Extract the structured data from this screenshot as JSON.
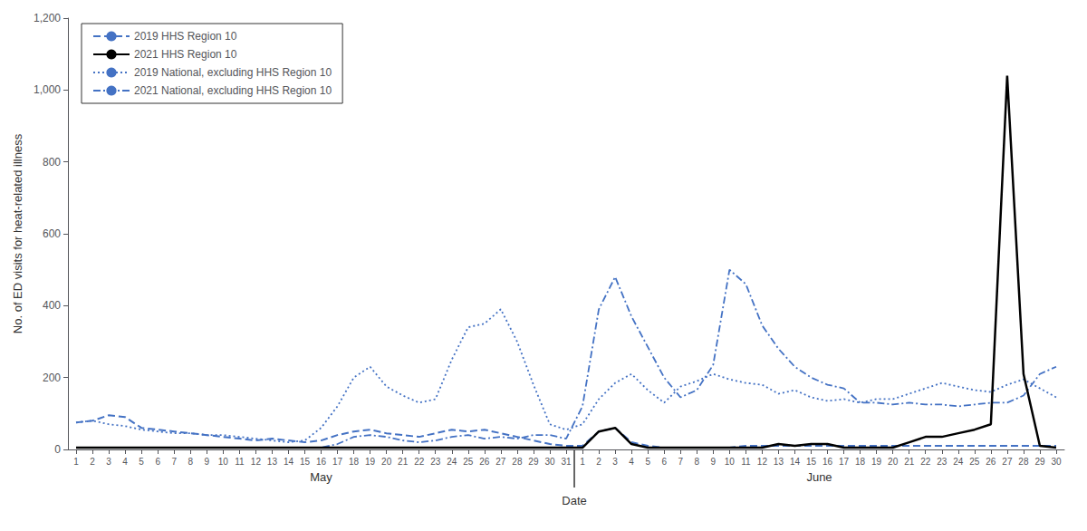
{
  "chart_data": {
    "type": "line",
    "ylabel": "No. of ED visits for heat-related illness",
    "xlabel": "Date",
    "annotations": [
      "May",
      "June"
    ],
    "categories": [
      "1",
      "2",
      "3",
      "4",
      "5",
      "6",
      "7",
      "8",
      "9",
      "10",
      "11",
      "12",
      "13",
      "14",
      "15",
      "16",
      "17",
      "18",
      "19",
      "20",
      "21",
      "22",
      "23",
      "24",
      "25",
      "26",
      "27",
      "28",
      "29",
      "30",
      "31",
      "1",
      "2",
      "3",
      "4",
      "5",
      "6",
      "7",
      "8",
      "9",
      "10",
      "11",
      "12",
      "13",
      "14",
      "15",
      "16",
      "17",
      "18",
      "19",
      "20",
      "21",
      "22",
      "23",
      "24",
      "25",
      "26",
      "27",
      "28",
      "29",
      "30"
    ],
    "series": [
      {
        "name": "2019 HHS Region 10",
        "color": "#4472C4",
        "line_style": "dashed",
        "values": [
          75,
          80,
          95,
          90,
          60,
          55,
          50,
          45,
          40,
          35,
          30,
          25,
          30,
          25,
          20,
          25,
          40,
          50,
          55,
          45,
          40,
          35,
          45,
          55,
          50,
          55,
          45,
          35,
          25,
          15,
          10,
          10,
          50,
          60,
          20,
          10,
          5,
          5,
          5,
          5,
          5,
          10,
          10,
          10,
          10,
          10,
          10,
          10,
          10,
          10,
          10,
          10,
          10,
          10,
          10,
          10,
          10,
          10,
          10,
          10,
          10
        ]
      },
      {
        "name": "2021 HHS Region 10",
        "color": "#000000",
        "line_style": "solid",
        "values": [
          5,
          5,
          5,
          5,
          5,
          5,
          5,
          5,
          5,
          5,
          5,
          5,
          5,
          5,
          5,
          5,
          5,
          5,
          5,
          5,
          5,
          5,
          5,
          5,
          5,
          5,
          5,
          5,
          5,
          5,
          5,
          5,
          50,
          60,
          15,
          5,
          5,
          5,
          5,
          5,
          5,
          5,
          5,
          15,
          10,
          15,
          15,
          5,
          5,
          5,
          5,
          20,
          35,
          35,
          45,
          55,
          70,
          1040,
          210,
          10,
          5
        ]
      },
      {
        "name": "2019 National, excluding HHS Region 10",
        "color": "#4472C4",
        "line_style": "dotted",
        "values": [
          75,
          80,
          70,
          65,
          55,
          50,
          45,
          45,
          40,
          40,
          35,
          30,
          25,
          20,
          25,
          60,
          120,
          200,
          230,
          175,
          150,
          130,
          140,
          250,
          340,
          350,
          390,
          300,
          180,
          70,
          55,
          70,
          140,
          185,
          210,
          165,
          130,
          175,
          190,
          210,
          195,
          185,
          180,
          155,
          165,
          145,
          135,
          140,
          130,
          140,
          140,
          155,
          170,
          185,
          175,
          165,
          160,
          180,
          195,
          170,
          145
        ]
      },
      {
        "name": "2021 National, excluding HHS Region 10",
        "color": "#4472C4",
        "line_style": "dashdot",
        "values": [
          5,
          5,
          5,
          5,
          5,
          5,
          5,
          5,
          5,
          5,
          5,
          5,
          5,
          5,
          5,
          5,
          15,
          35,
          40,
          35,
          25,
          20,
          25,
          35,
          40,
          30,
          35,
          30,
          40,
          40,
          30,
          120,
          390,
          480,
          370,
          285,
          200,
          145,
          165,
          235,
          500,
          460,
          345,
          280,
          230,
          200,
          180,
          170,
          130,
          130,
          125,
          130,
          125,
          125,
          120,
          125,
          130,
          130,
          150,
          210,
          230
        ]
      }
    ],
    "ylim": [
      0,
      1200
    ],
    "yticks": [
      0,
      200,
      400,
      600,
      800,
      {
        "value": 1000,
        "label": "1,000"
      },
      {
        "value": 1200,
        "label": "1,200"
      }
    ],
    "grid": false,
    "legend": "upper left"
  }
}
